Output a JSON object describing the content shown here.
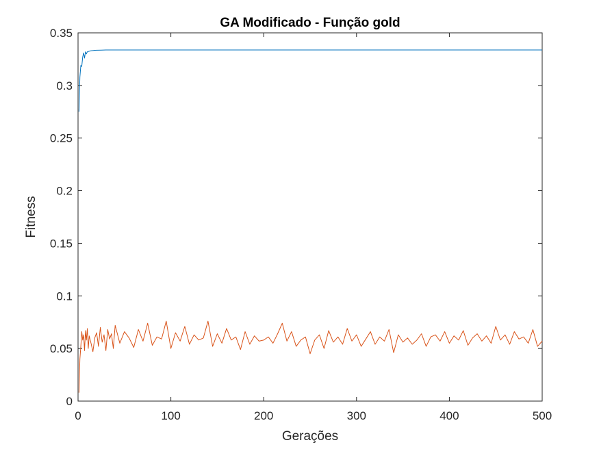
{
  "chart_data": {
    "type": "line",
    "title": "GA Modificado - Função gold",
    "xlabel": "Gerações",
    "ylabel": "Fitness",
    "xlim": [
      0,
      500
    ],
    "ylim": [
      0,
      0.35
    ],
    "xticks": [
      0,
      100,
      200,
      300,
      400,
      500
    ],
    "xtick_labels": [
      "0",
      "100",
      "200",
      "300",
      "400",
      "500"
    ],
    "yticks": [
      0,
      0.05,
      0.1,
      0.15,
      0.2,
      0.25,
      0.3,
      0.35
    ],
    "ytick_labels": [
      "0",
      "0.05",
      "0.1",
      "0.15",
      "0.2",
      "0.25",
      "0.3",
      "0.35"
    ],
    "grid": false,
    "legend": "none",
    "series": [
      {
        "color": "#0072BD",
        "x": [
          1,
          2,
          3,
          4,
          5,
          6,
          7,
          8,
          9,
          10,
          12,
          14,
          16,
          18,
          20,
          25,
          30,
          40,
          60,
          100,
          200,
          300,
          400,
          500
        ],
        "y": [
          0.275,
          0.308,
          0.319,
          0.318,
          0.327,
          0.331,
          0.326,
          0.332,
          0.33,
          0.332,
          0.3325,
          0.333,
          0.3332,
          0.3334,
          0.3335,
          0.3336,
          0.3337,
          0.3337,
          0.3337,
          0.3337,
          0.3337,
          0.3337,
          0.3337,
          0.3337
        ]
      },
      {
        "color": "#D95319",
        "x": [
          1,
          2,
          3,
          4,
          5,
          6,
          7,
          8,
          9,
          10,
          11,
          12,
          14,
          16,
          18,
          20,
          22,
          24,
          26,
          28,
          30,
          32,
          34,
          36,
          38,
          40,
          45,
          50,
          55,
          60,
          65,
          70,
          75,
          80,
          85,
          90,
          95,
          100,
          105,
          110,
          115,
          120,
          125,
          130,
          135,
          140,
          145,
          150,
          155,
          160,
          165,
          170,
          175,
          180,
          185,
          190,
          195,
          200,
          205,
          210,
          215,
          220,
          225,
          230,
          235,
          240,
          245,
          250,
          255,
          260,
          265,
          270,
          275,
          280,
          285,
          290,
          295,
          300,
          305,
          310,
          315,
          320,
          325,
          330,
          335,
          340,
          345,
          350,
          355,
          360,
          365,
          370,
          375,
          380,
          385,
          390,
          395,
          400,
          405,
          410,
          415,
          420,
          425,
          430,
          435,
          440,
          445,
          450,
          455,
          460,
          465,
          470,
          475,
          480,
          485,
          490,
          495,
          500
        ],
        "y": [
          0.008,
          0.04,
          0.052,
          0.066,
          0.058,
          0.063,
          0.048,
          0.067,
          0.058,
          0.069,
          0.05,
          0.062,
          0.055,
          0.047,
          0.06,
          0.065,
          0.052,
          0.07,
          0.056,
          0.063,
          0.048,
          0.068,
          0.059,
          0.064,
          0.05,
          0.072,
          0.055,
          0.066,
          0.06,
          0.051,
          0.068,
          0.057,
          0.074,
          0.053,
          0.061,
          0.059,
          0.076,
          0.05,
          0.065,
          0.057,
          0.071,
          0.054,
          0.063,
          0.058,
          0.06,
          0.076,
          0.052,
          0.064,
          0.055,
          0.069,
          0.058,
          0.061,
          0.049,
          0.066,
          0.054,
          0.062,
          0.057,
          0.058,
          0.061,
          0.055,
          0.064,
          0.074,
          0.057,
          0.066,
          0.052,
          0.058,
          0.061,
          0.045,
          0.058,
          0.063,
          0.05,
          0.067,
          0.056,
          0.061,
          0.054,
          0.069,
          0.057,
          0.063,
          0.052,
          0.059,
          0.066,
          0.054,
          0.061,
          0.057,
          0.068,
          0.046,
          0.063,
          0.056,
          0.06,
          0.054,
          0.058,
          0.064,
          0.052,
          0.061,
          0.063,
          0.057,
          0.066,
          0.055,
          0.062,
          0.058,
          0.067,
          0.053,
          0.06,
          0.064,
          0.057,
          0.062,
          0.055,
          0.071,
          0.058,
          0.063,
          0.054,
          0.066,
          0.059,
          0.061,
          0.055,
          0.068,
          0.052,
          0.057
        ]
      }
    ]
  }
}
